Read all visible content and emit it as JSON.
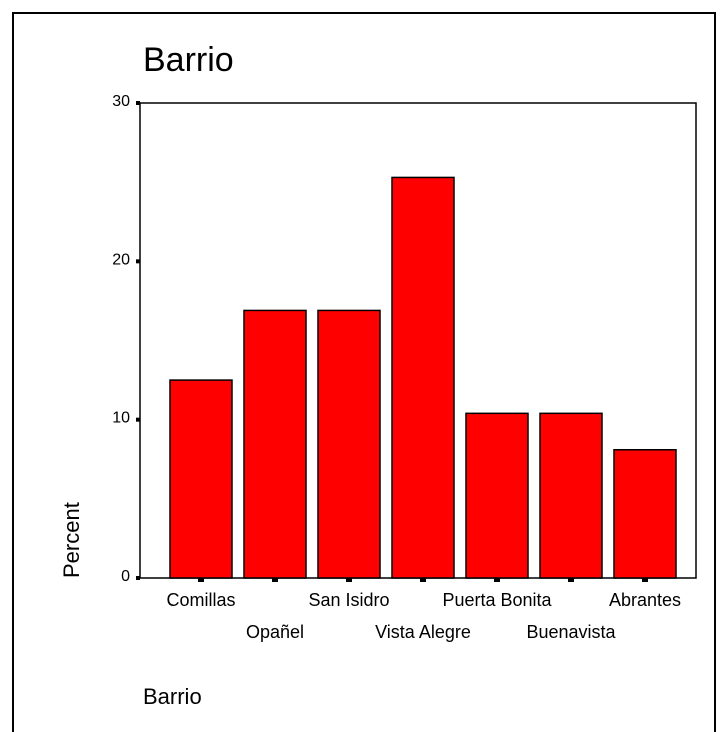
{
  "chart_data": {
    "type": "bar",
    "title": "Barrio",
    "xlabel": "Barrio",
    "ylabel": "Percent",
    "categories": [
      "Comillas",
      "Opañel",
      "San Isidro",
      "Vista Alegre",
      "Puerta Bonita",
      "Buenavista",
      "Abrantes"
    ],
    "values": [
      12.5,
      16.9,
      16.9,
      25.3,
      10.4,
      10.4,
      8.1
    ],
    "ylim": [
      0,
      30
    ],
    "yticks": [
      0,
      10,
      20,
      30
    ],
    "grid": false,
    "bar_color": "#ff0000",
    "bar_edge_color": "#000000"
  }
}
